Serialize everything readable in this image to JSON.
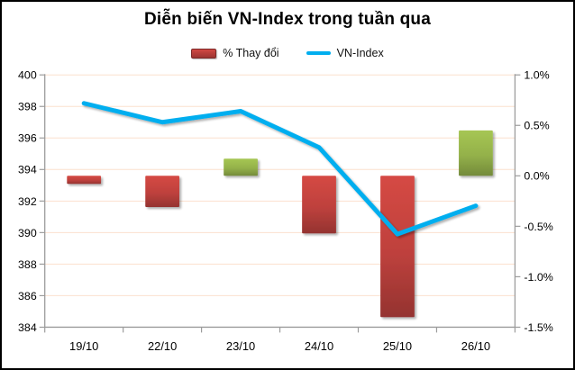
{
  "chart": {
    "title": "Diễn biến VN-Index trong tuần qua",
    "legend": [
      {
        "label": "% Thay đổi",
        "swatch": "bar"
      },
      {
        "label": "VN-Index",
        "swatch": "line"
      }
    ],
    "colors": {
      "bar_negative": "#BE413D",
      "bar_positive": "#94B14A",
      "line": "#00AEEF",
      "grid": "#FBE0CE",
      "axis": "#9C9C9C",
      "text": "#000000",
      "border": "#000000",
      "background": "#FFFFFF"
    }
  },
  "chart_data": {
    "type": "bar",
    "subtype": "combo-bar-line-dual-axis",
    "title": "Diễn biến VN-Index trong tuần qua",
    "categories": [
      "19/10",
      "22/10",
      "23/10",
      "24/10",
      "25/10",
      "26/10"
    ],
    "series": [
      {
        "name": "% Thay đổi",
        "type": "bar",
        "axis": "right",
        "unit": "%",
        "values": [
          -0.08,
          -0.31,
          0.17,
          -0.57,
          -1.4,
          0.45
        ]
      },
      {
        "name": "VN-Index",
        "type": "line",
        "axis": "left",
        "values": [
          398.2,
          397.0,
          397.7,
          395.4,
          389.9,
          391.7
        ]
      }
    ],
    "left_axis": {
      "min": 384,
      "max": 400,
      "step": 2,
      "tick_labels": [
        "400",
        "398",
        "396",
        "394",
        "392",
        "390",
        "388",
        "386",
        "384"
      ]
    },
    "right_axis": {
      "min": -1.5,
      "max": 1.0,
      "step": 0.5,
      "tick_labels": [
        "1.0%",
        "0.5%",
        "0.0%",
        "-0.5%",
        "-1.0%",
        "-1.5%"
      ]
    },
    "grid": true,
    "legend_position": "top",
    "xlabel": "",
    "ylabel": ""
  }
}
